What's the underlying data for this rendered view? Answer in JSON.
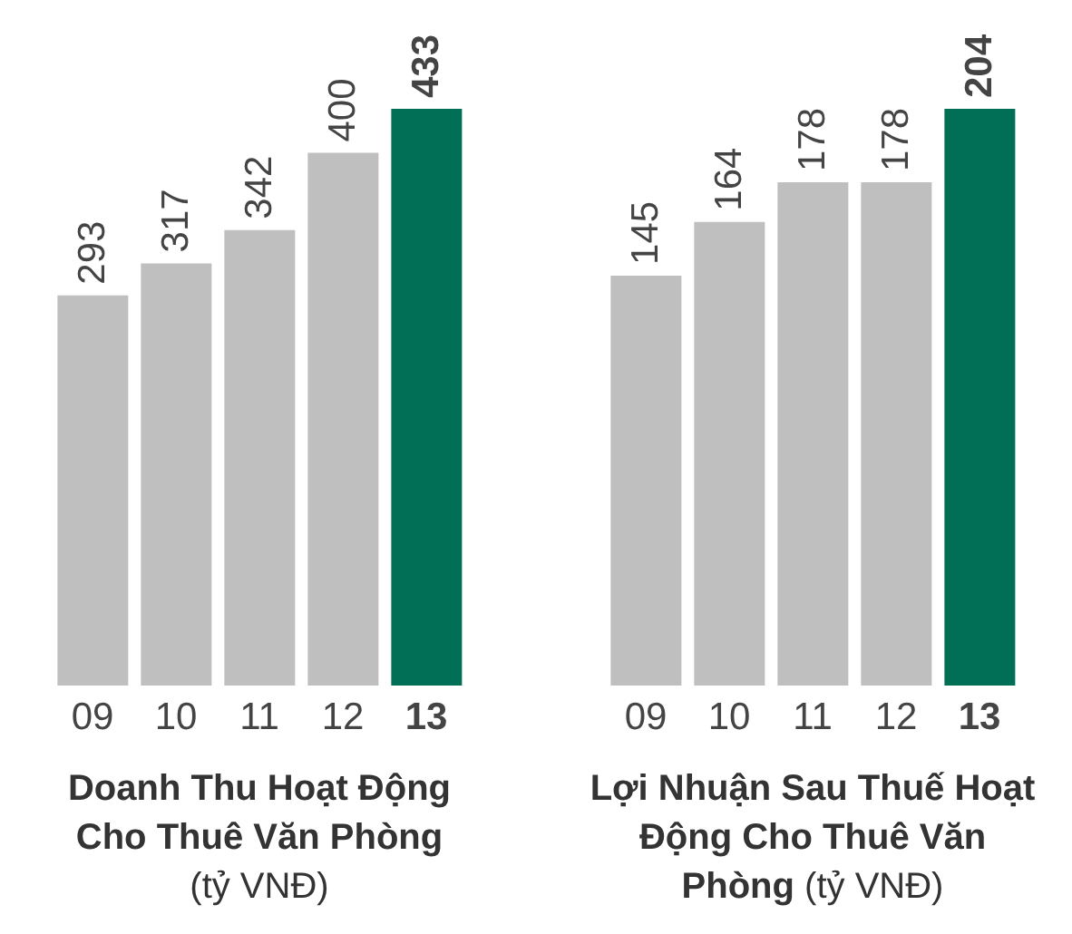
{
  "chart_data": [
    {
      "type": "bar",
      "title": "Doanh Thu Hoạt Động Cho Thuê Văn Phòng",
      "subtitle": "(tỷ VNĐ)",
      "categories": [
        "09",
        "10",
        "11",
        "12",
        "13"
      ],
      "values": [
        293,
        317,
        342,
        400,
        433
      ],
      "colors": [
        "#bfbfbf",
        "#bfbfbf",
        "#bfbfbf",
        "#bfbfbf",
        "#006f56"
      ],
      "data_labels": true
    },
    {
      "type": "bar",
      "title": "Lợi Nhuận Sau Thuế Hoạt Động Cho Thuê Văn Phòng",
      "subtitle": "(tỷ VNĐ)",
      "categories": [
        "09",
        "10",
        "11",
        "12",
        "13"
      ],
      "values": [
        145,
        164,
        178,
        178,
        204
      ],
      "colors": [
        "#bfbfbf",
        "#bfbfbf",
        "#bfbfbf",
        "#bfbfbf",
        "#006f56"
      ],
      "data_labels": true
    }
  ]
}
